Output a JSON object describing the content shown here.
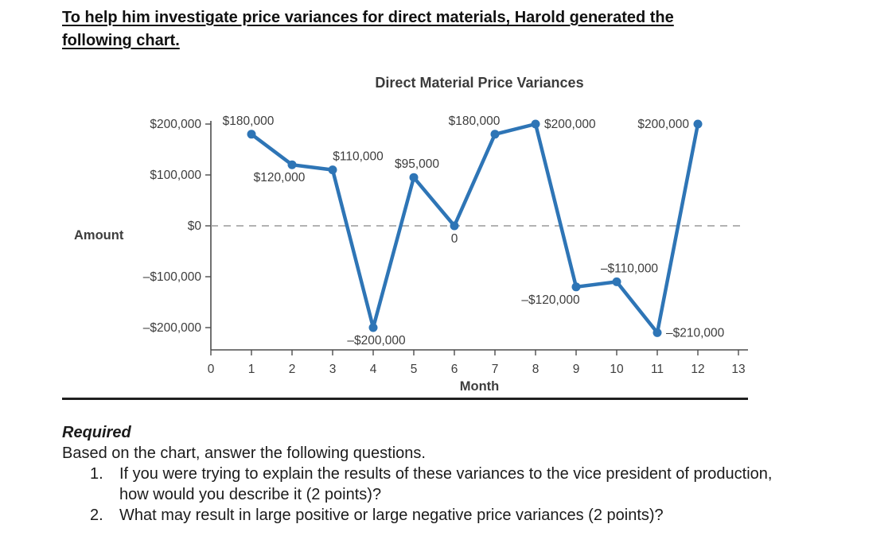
{
  "header": {
    "lines": [
      "To help him investigate price variances for direct materials, Harold generated the",
      "following chart."
    ]
  },
  "chart_data": {
    "type": "line",
    "title": "Direct Material Price Variances",
    "xlabel": "Month",
    "ylabel": "Amount",
    "x": [
      1,
      2,
      3,
      4,
      5,
      6,
      7,
      8,
      9,
      10,
      11,
      12
    ],
    "values": [
      180000,
      120000,
      110000,
      -200000,
      95000,
      0,
      180000,
      200000,
      -120000,
      -110000,
      -210000,
      200000
    ],
    "point_labels": [
      "$180,000",
      "$120,000",
      "$110,000",
      "–$200,000",
      "$95,000",
      "0",
      "$180,000",
      "$200,000",
      "–$120,000",
      "–$110,000",
      "–$210,000",
      "$200,000"
    ],
    "label_placements": [
      {
        "pos": "above",
        "dx": -4
      },
      {
        "pos": "below",
        "dx": -16
      },
      {
        "pos": "above",
        "dx": 32
      },
      {
        "pos": "below",
        "dx": 4
      },
      {
        "pos": "above",
        "dx": 4
      },
      {
        "pos": "below",
        "dx": 0
      },
      {
        "pos": "above",
        "dx": -26
      },
      {
        "pos": "right",
        "dx": 0
      },
      {
        "pos": "below",
        "dx": -32
      },
      {
        "pos": "above",
        "dx": 16
      },
      {
        "pos": "right",
        "dx": 0
      },
      {
        "pos": "left",
        "dx": 0
      }
    ],
    "xlim": [
      0,
      13
    ],
    "ylim": [
      -240000,
      210000
    ],
    "yticks": [
      {
        "value": 200000,
        "label": "$200,000"
      },
      {
        "value": 100000,
        "label": "$100,000"
      },
      {
        "value": 0,
        "label": "$0"
      },
      {
        "value": -100000,
        "label": "–$100,000"
      },
      {
        "value": -200000,
        "label": "–$200,000"
      }
    ],
    "xticks": [
      {
        "value": 0,
        "label": "0"
      },
      {
        "value": 1,
        "label": "1"
      },
      {
        "value": 2,
        "label": "2"
      },
      {
        "value": 3,
        "label": "3"
      },
      {
        "value": 4,
        "label": "4"
      },
      {
        "value": 5,
        "label": "5"
      },
      {
        "value": 6,
        "label": "6"
      },
      {
        "value": 7,
        "label": "7"
      },
      {
        "value": 8,
        "label": "8"
      },
      {
        "value": 9,
        "label": "9"
      },
      {
        "value": 10,
        "label": "10"
      },
      {
        "value": 11,
        "label": "11"
      },
      {
        "value": 12,
        "label": "12"
      },
      {
        "value": 13,
        "label": "13"
      }
    ],
    "grid": false,
    "legend": false,
    "zero_line": "dashed",
    "colors": {
      "line": "#2E75B6",
      "marker": "#2E75B6",
      "chart_text": "#3D3D3D",
      "axis": "#4D4D4D",
      "zero_line": "#999999"
    }
  },
  "required_section": {
    "heading": "Required",
    "intro": "Based on the chart, answer the following questions.",
    "items": [
      {
        "number": "1.",
        "text": "If you were trying to explain the results of these variances to the vice president of production, how would you describe it (2 points)?"
      },
      {
        "number": "2.",
        "text": "What may result in large positive or large negative price variances (2 points)?"
      }
    ]
  }
}
